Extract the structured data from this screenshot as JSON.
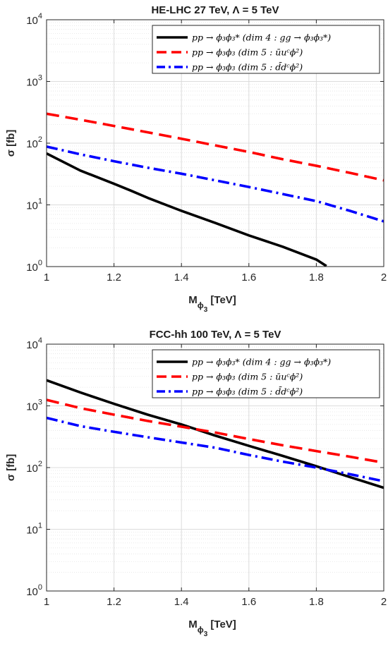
{
  "chart_data": [
    {
      "type": "line",
      "title": "HE-LHC 27 TeV, Λ = 5 TeV",
      "xlabel": "M",
      "xlabel_sub": "ϕ",
      "xlabel_subsub": "3",
      "xlabel_unit": "[TeV]",
      "ylabel": "σ [fb]",
      "xlim": [
        1,
        2
      ],
      "ylim": [
        1,
        10000
      ],
      "yscale": "log",
      "grid": true,
      "legend_position": "top-right",
      "x_ticks": [
        "1",
        "1.2",
        "1.4",
        "1.6",
        "1.8",
        "2"
      ],
      "y_ticks": [
        {
          "base": "10",
          "exp": "0"
        },
        {
          "base": "10",
          "exp": "1"
        },
        {
          "base": "10",
          "exp": "2"
        },
        {
          "base": "10",
          "exp": "3"
        },
        {
          "base": "10",
          "exp": "4"
        }
      ],
      "series": [
        {
          "name": "pp → ϕ₃ϕ₃* (dim 4 :  gg → ϕ₃ϕ₃*)",
          "color": "#000000",
          "style": "solid",
          "x": [
            1.0,
            1.1,
            1.2,
            1.25,
            1.3,
            1.4,
            1.5,
            1.6,
            1.7,
            1.8,
            1.83
          ],
          "y": [
            68,
            36,
            22,
            17,
            13,
            8,
            5.1,
            3.2,
            2.1,
            1.3,
            1.02
          ]
        },
        {
          "name": "pp → ϕ₃ϕ₃ (dim 5 :  ūuᶜϕ²)",
          "color": "#ff0000",
          "style": "dashed",
          "x": [
            1.0,
            1.1,
            1.2,
            1.3,
            1.4,
            1.5,
            1.6,
            1.7,
            1.8,
            1.9,
            2.0
          ],
          "y": [
            300,
            240,
            190,
            150,
            118,
            92,
            72,
            55,
            43,
            33,
            25
          ]
        },
        {
          "name": "pp → ϕ₃ϕ₃ (dim 5 :  d̄dᶜϕ²)",
          "color": "#0000ff",
          "style": "dashdot",
          "x": [
            1.0,
            1.1,
            1.2,
            1.3,
            1.4,
            1.5,
            1.6,
            1.7,
            1.8,
            1.9,
            2.0
          ],
          "y": [
            88,
            66,
            51,
            40,
            32,
            25,
            19.5,
            15,
            11.5,
            8,
            5.4
          ]
        }
      ]
    },
    {
      "type": "line",
      "title": "FCC-hh 100 TeV, Λ = 5 TeV",
      "xlabel": "M",
      "xlabel_sub": "ϕ",
      "xlabel_subsub": "3",
      "xlabel_unit": "[TeV]",
      "ylabel": "σ [fb]",
      "xlim": [
        1,
        2
      ],
      "ylim": [
        1,
        10000
      ],
      "yscale": "log",
      "grid": true,
      "legend_position": "top-right",
      "x_ticks": [
        "1",
        "1.2",
        "1.4",
        "1.6",
        "1.8",
        "2"
      ],
      "y_ticks": [
        {
          "base": "10",
          "exp": "0"
        },
        {
          "base": "10",
          "exp": "1"
        },
        {
          "base": "10",
          "exp": "2"
        },
        {
          "base": "10",
          "exp": "3"
        },
        {
          "base": "10",
          "exp": "4"
        }
      ],
      "series": [
        {
          "name": "pp → ϕ₃ϕ₃* (dim 4 :  gg → ϕ₃ϕ₃*)",
          "color": "#000000",
          "style": "solid",
          "x": [
            1.0,
            1.1,
            1.2,
            1.3,
            1.4,
            1.5,
            1.6,
            1.7,
            1.8,
            1.9,
            2.0
          ],
          "y": [
            2600,
            1650,
            1080,
            720,
            500,
            330,
            225,
            155,
            105,
            70,
            47
          ]
        },
        {
          "name": "pp → ϕ₃ϕ₃ (dim 5 :  ūuᶜϕ²)",
          "color": "#ff0000",
          "style": "dashed",
          "x": [
            1.0,
            1.1,
            1.2,
            1.3,
            1.4,
            1.5,
            1.6,
            1.7,
            1.8,
            1.9,
            2.0
          ],
          "y": [
            1250,
            920,
            720,
            570,
            460,
            370,
            290,
            230,
            185,
            150,
            120
          ]
        },
        {
          "name": "pp → ϕ₃ϕ₃ (dim 5 :  d̄dᶜϕ²)",
          "color": "#0000ff",
          "style": "dashdot",
          "x": [
            1.0,
            1.1,
            1.2,
            1.3,
            1.4,
            1.5,
            1.6,
            1.7,
            1.8,
            1.9,
            2.0
          ],
          "y": [
            640,
            470,
            380,
            310,
            255,
            210,
            160,
            125,
            100,
            78,
            60
          ]
        }
      ]
    }
  ]
}
